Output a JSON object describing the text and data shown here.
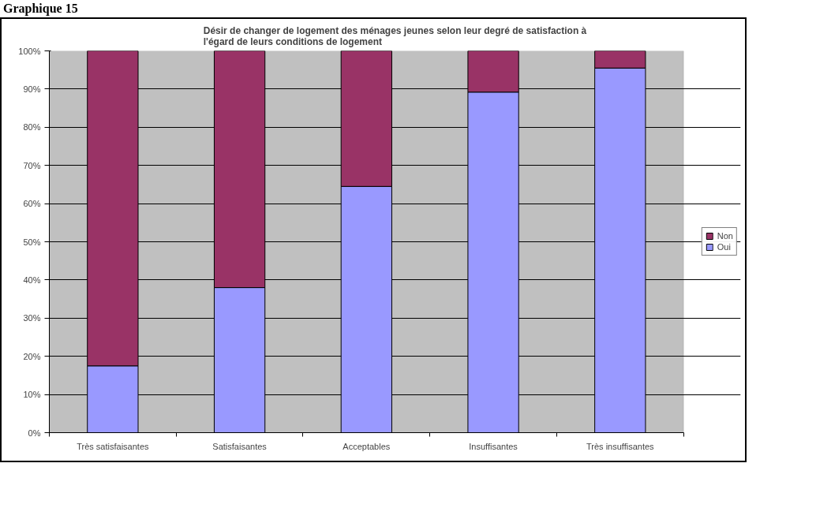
{
  "chart_data": {
    "type": "bar",
    "stacked": true,
    "title": "Désir de changer de logement des ménages jeunes selon leur degré de satisfaction à l'égard de leurs conditions de logement",
    "annotations": [
      "Graphique 15"
    ],
    "categories": [
      "Très satisfaisantes",
      "Satisfaisantes",
      "Acceptables",
      "Insuffisantes",
      "Très insuffisantes"
    ],
    "series": [
      {
        "name": "Oui",
        "color": "#9999ff",
        "values": [
          17.5,
          38,
          64.5,
          89.2,
          95.5
        ]
      },
      {
        "name": "Non",
        "color": "#993366",
        "values": [
          82.5,
          62,
          35.5,
          10.8,
          4.5
        ]
      }
    ],
    "ylim": [
      0,
      100
    ],
    "yticks": [
      {
        "value": 0,
        "label": "0%"
      },
      {
        "value": 10,
        "label": "10%"
      },
      {
        "value": 20,
        "label": "20%"
      },
      {
        "value": 30,
        "label": "30%"
      },
      {
        "value": 40,
        "label": "40%"
      },
      {
        "value": 50,
        "label": "50%"
      },
      {
        "value": 60,
        "label": "60%"
      },
      {
        "value": 70,
        "label": "70%"
      },
      {
        "value": 80,
        "label": "80%"
      },
      {
        "value": 90,
        "label": "90%"
      },
      {
        "value": 100,
        "label": "100%"
      }
    ],
    "grid": "y",
    "legend": "right"
  }
}
